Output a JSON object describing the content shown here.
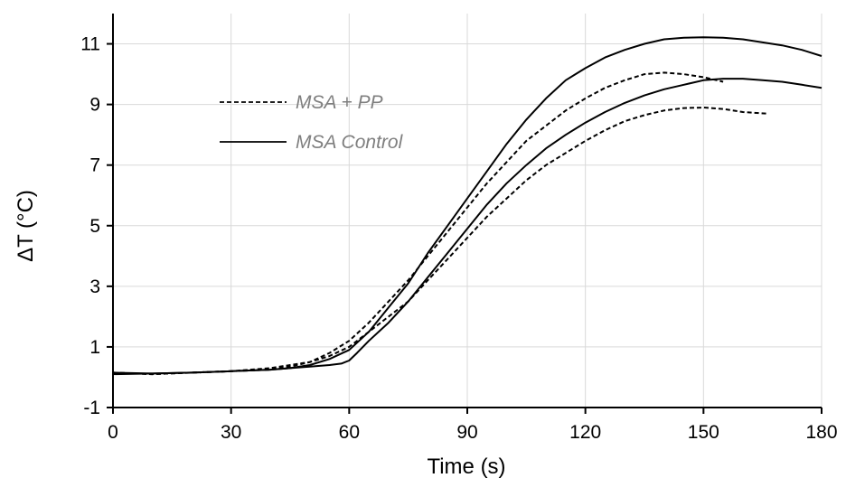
{
  "chart_data": {
    "type": "line",
    "title": "",
    "xlabel": "Time (s)",
    "ylabel": "ΔT  (°C)",
    "xlim": [
      0,
      180
    ],
    "ylim": [
      -1,
      12
    ],
    "xticks": [
      0,
      30,
      60,
      90,
      120,
      150,
      180
    ],
    "yticks": [
      -1,
      1,
      3,
      5,
      7,
      9,
      11
    ],
    "x_tick_labels": [
      "0",
      "30",
      "60",
      "90",
      "120",
      "150",
      "180"
    ],
    "y_tick_labels": [
      "-1",
      "1",
      "3",
      "5",
      "7",
      "9",
      "11"
    ],
    "grid": true,
    "legend_position": "upper-left",
    "legend": [
      {
        "label": "MSA + PP",
        "style": "dashed"
      },
      {
        "label": "MSA Control",
        "style": "solid"
      }
    ],
    "series": [
      {
        "group": "MSA + PP",
        "style": "dashed",
        "x": [
          0,
          10,
          20,
          30,
          40,
          45,
          50,
          55,
          60,
          65,
          70,
          75,
          80,
          85,
          90,
          95,
          100,
          105,
          110,
          115,
          120,
          125,
          130,
          135,
          140,
          145,
          150,
          155,
          160,
          166
        ],
        "y": [
          0.15,
          0.1,
          0.15,
          0.2,
          0.3,
          0.4,
          0.5,
          0.7,
          1.0,
          1.5,
          2.0,
          2.5,
          3.2,
          3.9,
          4.6,
          5.3,
          5.9,
          6.5,
          7.0,
          7.4,
          7.8,
          8.15,
          8.45,
          8.65,
          8.8,
          8.88,
          8.9,
          8.85,
          8.75,
          8.7
        ]
      },
      {
        "group": "MSA + PP",
        "style": "dashed",
        "x": [
          0,
          10,
          20,
          30,
          40,
          45,
          50,
          55,
          60,
          65,
          70,
          75,
          80,
          85,
          90,
          95,
          100,
          105,
          110,
          115,
          120,
          125,
          130,
          135,
          140,
          145,
          150,
          155
        ],
        "y": [
          0.15,
          0.1,
          0.15,
          0.2,
          0.25,
          0.35,
          0.5,
          0.8,
          1.2,
          1.8,
          2.5,
          3.2,
          4.0,
          4.8,
          5.6,
          6.4,
          7.1,
          7.8,
          8.3,
          8.8,
          9.2,
          9.55,
          9.8,
          10.0,
          10.05,
          10.0,
          9.9,
          9.75
        ]
      },
      {
        "group": "MSA Control",
        "style": "solid",
        "x": [
          0,
          10,
          20,
          30,
          40,
          45,
          50,
          55,
          58,
          60,
          62,
          65,
          70,
          75,
          80,
          85,
          90,
          95,
          100,
          105,
          110,
          115,
          120,
          125,
          130,
          135,
          140,
          145,
          150,
          155,
          160,
          165,
          170,
          175,
          180
        ],
        "y": [
          0.1,
          0.12,
          0.15,
          0.2,
          0.25,
          0.3,
          0.35,
          0.4,
          0.45,
          0.55,
          0.8,
          1.2,
          1.8,
          2.5,
          3.3,
          4.1,
          4.9,
          5.7,
          6.4,
          7.0,
          7.55,
          8.0,
          8.4,
          8.75,
          9.05,
          9.3,
          9.5,
          9.65,
          9.8,
          9.85,
          9.85,
          9.8,
          9.75,
          9.65,
          9.55
        ]
      },
      {
        "group": "MSA Control",
        "style": "solid",
        "x": [
          0,
          10,
          20,
          30,
          40,
          45,
          50,
          55,
          60,
          65,
          70,
          75,
          80,
          85,
          90,
          95,
          100,
          105,
          110,
          115,
          120,
          125,
          130,
          135,
          140,
          145,
          150,
          155,
          160,
          165,
          170,
          175,
          180
        ],
        "y": [
          0.15,
          0.12,
          0.15,
          0.2,
          0.25,
          0.3,
          0.4,
          0.6,
          0.9,
          1.5,
          2.3,
          3.1,
          4.1,
          5.0,
          5.9,
          6.8,
          7.7,
          8.5,
          9.2,
          9.8,
          10.2,
          10.55,
          10.8,
          11.0,
          11.15,
          11.2,
          11.22,
          11.2,
          11.15,
          11.05,
          10.95,
          10.8,
          10.6
        ]
      }
    ]
  }
}
